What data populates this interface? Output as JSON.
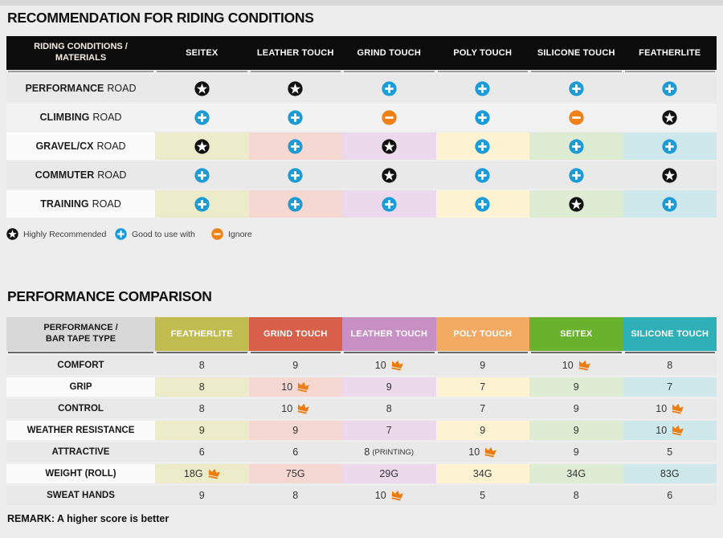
{
  "page": {
    "title1": "RECOMMENDATION FOR RIDING CONDITIONS",
    "title2": "PERFORMANCE COMPARISON",
    "remark": "REMARK: A higher score is better"
  },
  "colors": {
    "star_badge": "#111111",
    "plus_badge": "#1b9cd8",
    "ignore_badge": "#ef8118",
    "crown": "#ee7d11",
    "table1_header_bg": "#0c0c0c",
    "table2_label_header_bg": "#d8d8d8",
    "row_gray": "#e9e9e9",
    "row_light": "#f2f2f2",
    "row_white": "#fbfbfb"
  },
  "riding_table": {
    "header_label": "RIDING CONDITIONS / MATERIALS",
    "columns": [
      "SEITEX",
      "LEATHER TOUCH",
      "GRIND TOUCH",
      "POLY TOUCH",
      "SILICONE TOUCH",
      "FEATHERLITE"
    ],
    "tints": [
      "#ecebca",
      "#f6d8d2",
      "#edd9ec",
      "#fdf3d3",
      "#ddecd2",
      "#cee8ec"
    ],
    "rows": [
      {
        "bold": "PERFORMANCE",
        "rest": "ROAD",
        "shade": "gray",
        "cells": [
          "star",
          "star",
          "plus",
          "plus",
          "plus",
          "plus"
        ]
      },
      {
        "bold": "CLIMBING",
        "rest": "ROAD",
        "shade": "light",
        "cells": [
          "plus",
          "plus",
          "ignore",
          "plus",
          "ignore",
          "star"
        ]
      },
      {
        "bold": "GRAVEL/CX",
        "rest": "ROAD",
        "shade": "tinted",
        "cells": [
          "star",
          "plus",
          "star",
          "plus",
          "plus",
          "plus"
        ]
      },
      {
        "bold": "COMMUTER",
        "rest": "ROAD",
        "shade": "gray",
        "cells": [
          "plus",
          "plus",
          "star",
          "plus",
          "plus",
          "star"
        ]
      },
      {
        "bold": "TRAINING",
        "rest": "ROAD",
        "shade": "tinted",
        "cells": [
          "plus",
          "plus",
          "plus",
          "plus",
          "star",
          "plus"
        ]
      }
    ]
  },
  "legend": [
    {
      "icon": "star",
      "label": "Highly Recommended"
    },
    {
      "icon": "plus",
      "label": "Good to use with"
    },
    {
      "icon": "ignore",
      "label": "Ignore"
    }
  ],
  "performance_table": {
    "header_label": "PERFORMANCE / BAR TAPE TYPE",
    "columns": [
      {
        "label": "FEATHERLITE",
        "color": "#c1bc50",
        "tint": "#ecebca"
      },
      {
        "label": "GRIND TOUCH",
        "color": "#d8604b",
        "tint": "#f6d8d2"
      },
      {
        "label": "LEATHER TOUCH",
        "color": "#c88fc4",
        "tint": "#edd9ec"
      },
      {
        "label": "POLY TOUCH",
        "color": "#f3ab63",
        "tint": "#fdf3d3"
      },
      {
        "label": "SEITEX",
        "color": "#68b22d",
        "tint": "#ddecd2"
      },
      {
        "label": "SILICONE TOUCH",
        "color": "#2fafb8",
        "tint": "#cee8ec"
      }
    ],
    "rows": [
      {
        "label": "COMFORT",
        "shade": "gray",
        "cells": [
          {
            "v": "8"
          },
          {
            "v": "9"
          },
          {
            "v": "10",
            "crown": true
          },
          {
            "v": "9"
          },
          {
            "v": "10",
            "crown": true
          },
          {
            "v": "8"
          }
        ]
      },
      {
        "label": "GRIP",
        "shade": "tinted",
        "cells": [
          {
            "v": "8"
          },
          {
            "v": "10",
            "crown": true
          },
          {
            "v": "9"
          },
          {
            "v": "7"
          },
          {
            "v": "9"
          },
          {
            "v": "7"
          }
        ]
      },
      {
        "label": "CONTROL",
        "shade": "gray",
        "cells": [
          {
            "v": "8"
          },
          {
            "v": "10",
            "crown": true
          },
          {
            "v": "8"
          },
          {
            "v": "7"
          },
          {
            "v": "9"
          },
          {
            "v": "10",
            "crown": true
          }
        ]
      },
      {
        "label": "WEATHER RESISTANCE",
        "shade": "tinted",
        "cells": [
          {
            "v": "9"
          },
          {
            "v": "9"
          },
          {
            "v": "7"
          },
          {
            "v": "9"
          },
          {
            "v": "9"
          },
          {
            "v": "10",
            "crown": true
          }
        ]
      },
      {
        "label": "ATTRACTIVE",
        "shade": "gray",
        "cells": [
          {
            "v": "6"
          },
          {
            "v": "6"
          },
          {
            "v": "8",
            "suffix": "(PRINTING)"
          },
          {
            "v": "10",
            "crown": true
          },
          {
            "v": "9"
          },
          {
            "v": "5"
          }
        ]
      },
      {
        "label": "WEIGHT (ROLL)",
        "shade": "tinted",
        "cells": [
          {
            "v": "18G",
            "crown": true
          },
          {
            "v": "75G"
          },
          {
            "v": "29G"
          },
          {
            "v": "34G"
          },
          {
            "v": "34G"
          },
          {
            "v": "83G"
          }
        ]
      },
      {
        "label": "SWEAT HANDS",
        "shade": "gray",
        "cells": [
          {
            "v": "9"
          },
          {
            "v": "8"
          },
          {
            "v": "10",
            "crown": true
          },
          {
            "v": "5"
          },
          {
            "v": "8"
          },
          {
            "v": "6"
          }
        ]
      }
    ]
  }
}
